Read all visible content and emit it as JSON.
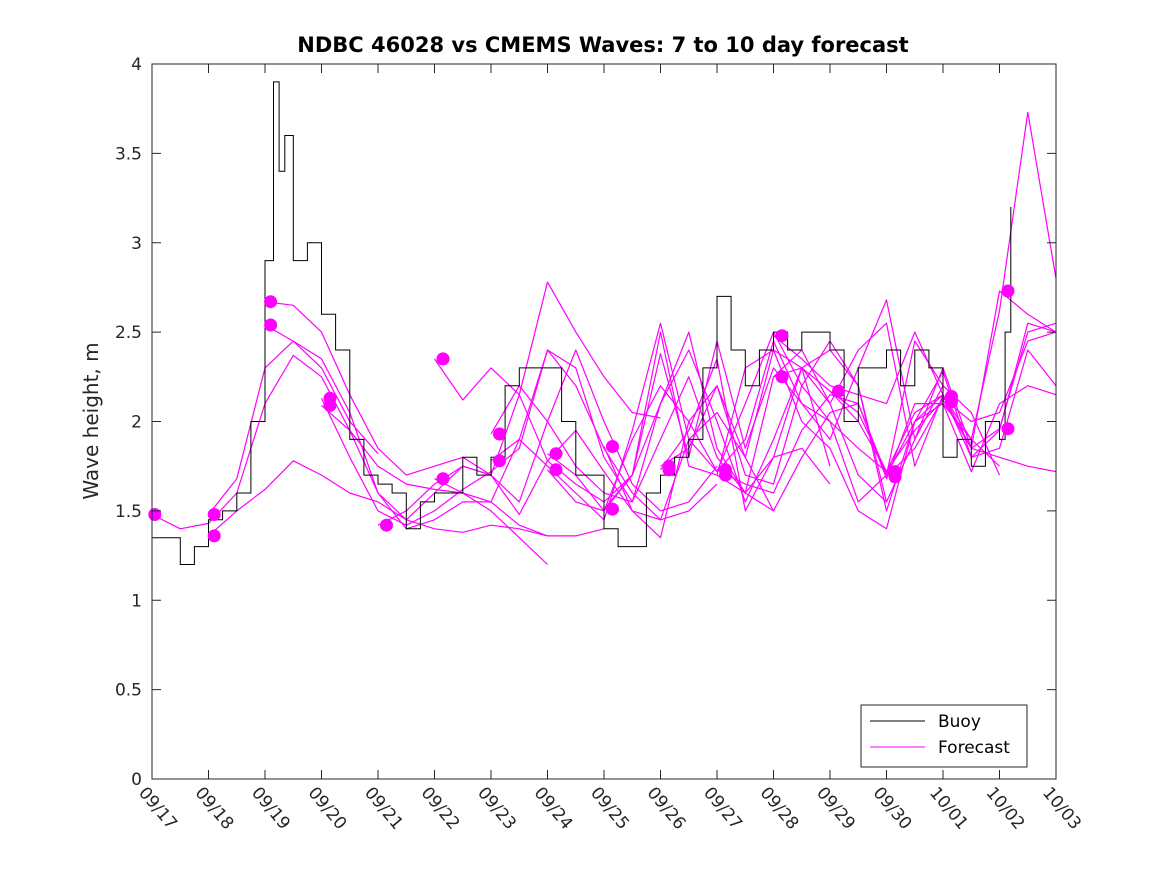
{
  "chart_data": {
    "type": "line",
    "title": "NDBC 46028 vs CMEMS Waves: 7 to 10 day forecast",
    "xlabel": "",
    "ylabel": "Wave height, m",
    "xlim": [
      0,
      16
    ],
    "ylim": [
      0,
      4
    ],
    "yticks": [
      "0",
      "0.5",
      "1",
      "1.5",
      "2",
      "2.5",
      "3",
      "3.5",
      "4"
    ],
    "xticks": [
      "09/17",
      "09/18",
      "09/19",
      "09/20",
      "09/21",
      "09/22",
      "09/23",
      "09/24",
      "09/25",
      "09/26",
      "09/27",
      "09/28",
      "09/29",
      "09/30",
      "10/01",
      "10/02",
      "10/03"
    ],
    "legend": {
      "position": "bottom-right",
      "entries": [
        "Buoy",
        "Forecast"
      ]
    },
    "colors": {
      "buoy": "#000000",
      "forecast": "#ff00ff"
    },
    "buoy": {
      "name": "Buoy",
      "x": [
        0,
        0.25,
        0.5,
        0.75,
        1,
        1.25,
        1.5,
        1.75,
        2,
        2.15,
        2.25,
        2.35,
        2.5,
        2.75,
        3,
        3.25,
        3.5,
        3.75,
        4,
        4.25,
        4.5,
        4.75,
        5,
        5.25,
        5.5,
        5.75,
        6,
        6.25,
        6.5,
        6.75,
        7,
        7.25,
        7.5,
        7.75,
        8,
        8.25,
        8.5,
        8.75,
        9,
        9.25,
        9.5,
        9.75,
        10,
        10.25,
        10.5,
        10.75,
        11,
        11.25,
        11.5,
        11.75,
        12,
        12.25,
        12.5,
        12.75,
        13,
        13.25,
        13.5,
        13.75,
        14,
        14.25,
        14.5,
        14.75,
        15,
        15.1,
        15.2
      ],
      "y": [
        1.35,
        1.35,
        1.2,
        1.3,
        1.45,
        1.5,
        1.6,
        2.0,
        2.9,
        3.9,
        3.4,
        3.6,
        2.9,
        3.0,
        2.6,
        2.4,
        1.9,
        1.7,
        1.65,
        1.6,
        1.4,
        1.55,
        1.6,
        1.6,
        1.8,
        1.7,
        1.8,
        2.2,
        2.3,
        2.3,
        2.3,
        2.0,
        1.7,
        1.7,
        1.4,
        1.3,
        1.3,
        1.6,
        1.7,
        1.8,
        1.9,
        2.3,
        2.7,
        2.4,
        2.2,
        2.4,
        2.5,
        2.4,
        2.5,
        2.5,
        2.4,
        2.0,
        2.3,
        2.3,
        2.4,
        2.2,
        2.4,
        2.3,
        1.8,
        1.9,
        1.75,
        2.0,
        1.9,
        2.5,
        3.2
      ]
    },
    "series": [
      {
        "name": "Forecast",
        "x": [
          0,
          0.5,
          1,
          1.5,
          2,
          2.5,
          3,
          3.5,
          4,
          4.5,
          5,
          5.5,
          6,
          6.5,
          7
        ],
        "y": [
          1.48,
          1.4,
          1.43,
          1.6,
          2.1,
          2.37,
          2.25,
          1.95,
          1.75,
          1.65,
          1.62,
          1.6,
          1.5,
          1.35,
          1.2
        ]
      },
      {
        "name": "Forecast",
        "x": [
          1,
          1.5,
          2,
          2.5,
          3,
          3.5,
          4,
          4.5,
          5,
          5.5,
          6,
          6.5,
          7
        ],
        "y": [
          1.48,
          1.68,
          2.3,
          2.45,
          2.35,
          2.05,
          1.6,
          1.4,
          1.45,
          1.55,
          1.55,
          1.42,
          1.36
        ]
      },
      {
        "name": "Forecast",
        "x": [
          1,
          1.5,
          2,
          2.5,
          3,
          3.5,
          4,
          4.5,
          5,
          5.5,
          6,
          6.5,
          7,
          7.5,
          8
        ],
        "y": [
          1.36,
          1.5,
          1.62,
          1.78,
          1.7,
          1.6,
          1.55,
          1.45,
          1.4,
          1.38,
          1.42,
          1.4,
          1.36,
          1.36,
          1.4
        ]
      },
      {
        "name": "Forecast",
        "x": [
          2,
          2.5,
          3,
          3.5,
          4,
          4.5,
          5,
          5.5,
          6,
          6.5,
          7,
          7.5,
          8,
          8.5,
          9
        ],
        "y": [
          2.67,
          2.65,
          2.5,
          2.15,
          1.85,
          1.7,
          1.75,
          1.8,
          1.7,
          2.15,
          2.78,
          2.5,
          2.25,
          2.05,
          2.02
        ]
      },
      {
        "name": "Forecast",
        "x": [
          2,
          2.5,
          3,
          3.5,
          4
        ],
        "y": [
          2.54,
          2.45,
          2.3,
          2.0,
          1.82
        ]
      },
      {
        "name": "Forecast",
        "x": [
          3,
          3.5,
          4,
          4.5,
          5,
          5.5,
          6,
          6.5,
          7,
          7.5,
          8,
          8.5,
          9,
          9.5,
          10
        ],
        "y": [
          2.13,
          1.8,
          1.5,
          1.42,
          1.5,
          1.62,
          1.72,
          1.85,
          2.4,
          2.2,
          1.85,
          1.6,
          1.45,
          1.5,
          1.65
        ]
      },
      {
        "name": "Forecast",
        "x": [
          3,
          3.5,
          4,
          4.5,
          5,
          5.5,
          6,
          6.5,
          7,
          7.5,
          8,
          8.5,
          9,
          9.5,
          10
        ],
        "y": [
          2.09,
          1.95,
          1.6,
          1.45,
          1.6,
          1.75,
          1.7,
          1.55,
          2.0,
          2.4,
          2.0,
          1.65,
          1.5,
          1.55,
          1.75
        ]
      },
      {
        "name": "Forecast",
        "x": [
          4,
          4.5,
          5,
          5.5,
          6,
          6.5,
          7,
          7.5,
          8,
          8.5,
          9,
          9.5,
          10,
          10.5,
          11
        ],
        "y": [
          1.42,
          1.5,
          1.65,
          1.75,
          1.7,
          1.48,
          1.78,
          1.95,
          1.72,
          1.5,
          1.45,
          1.9,
          2.05,
          1.8,
          1.5
        ]
      },
      {
        "name": "Forecast",
        "x": [
          5,
          5.5,
          6,
          6.5,
          7,
          7.5,
          8,
          8.5,
          9,
          9.5,
          10,
          10.5,
          11,
          11.5,
          12
        ],
        "y": [
          2.35,
          2.12,
          2.3,
          2.15,
          1.78,
          1.65,
          1.55,
          1.7,
          2.1,
          2.5,
          1.85,
          1.6,
          1.8,
          1.85,
          1.65
        ]
      },
      {
        "name": "Forecast",
        "x": [
          5,
          5.5,
          6,
          6.5,
          7,
          7.5,
          8,
          8.5,
          9,
          9.5,
          10,
          10.5,
          11,
          11.5,
          12
        ],
        "y": [
          1.68,
          1.6,
          1.55,
          1.9,
          2.4,
          2.3,
          1.8,
          1.55,
          2.1,
          2.4,
          2.0,
          1.55,
          1.9,
          2.3,
          1.75
        ]
      },
      {
        "name": "Forecast",
        "x": [
          6,
          6.5,
          7,
          7.5,
          8,
          8.5,
          9,
          9.5,
          10,
          10.5,
          11,
          11.5,
          12,
          12.5,
          13
        ],
        "y": [
          1.93,
          2.2,
          2.0,
          1.75,
          1.6,
          1.55,
          1.9,
          2.25,
          1.8,
          1.6,
          2.25,
          2.4,
          2.1,
          1.7,
          1.55
        ]
      },
      {
        "name": "Forecast",
        "x": [
          6,
          6.5,
          7,
          7.5,
          8,
          8.5,
          9,
          9.5,
          10,
          10.5,
          11,
          11.5,
          12,
          12.5,
          13
        ],
        "y": [
          1.78,
          1.9,
          1.75,
          1.6,
          1.45,
          1.95,
          2.55,
          1.9,
          1.72,
          1.9,
          2.45,
          2.1,
          2.0,
          1.85,
          1.72
        ]
      },
      {
        "name": "Forecast",
        "x": [
          7,
          7.5,
          8,
          8.5,
          9,
          9.5,
          10,
          10.5,
          11,
          11.5,
          12,
          12.5,
          13,
          13.5,
          14
        ],
        "y": [
          1.82,
          1.7,
          1.5,
          1.7,
          2.5,
          1.75,
          1.7,
          2.3,
          2.4,
          2.0,
          1.85,
          1.5,
          1.4,
          2.0,
          2.15
        ]
      },
      {
        "name": "Forecast",
        "x": [
          7,
          7.5,
          8,
          8.5,
          9,
          9.5,
          10,
          10.5,
          11,
          11.5,
          12,
          12.5,
          13,
          13.5,
          14
        ],
        "y": [
          1.73,
          1.55,
          1.5,
          1.9,
          2.2,
          2.0,
          1.72,
          2.1,
          2.5,
          2.2,
          2.0,
          1.55,
          1.7,
          2.45,
          2.2
        ]
      },
      {
        "name": "Forecast",
        "x": [
          8,
          8.5,
          9,
          9.5,
          10,
          10.5,
          11,
          11.5,
          12,
          12.5,
          13,
          13.5,
          14,
          14.5,
          15
        ],
        "y": [
          1.86,
          1.5,
          1.35,
          2.0,
          2.2,
          1.8,
          2.4,
          2.3,
          2.1,
          2.4,
          2.55,
          1.75,
          2.15,
          1.9,
          1.75
        ]
      },
      {
        "name": "Forecast",
        "x": [
          8,
          8.5,
          9,
          9.5,
          10,
          10.5,
          11,
          11.5,
          12,
          12.5,
          13,
          13.5,
          14,
          14.5,
          15
        ],
        "y": [
          1.51,
          1.7,
          2.38,
          1.8,
          2.45,
          1.85,
          2.3,
          2.1,
          1.9,
          2.3,
          2.68,
          1.9,
          2.2,
          2.05,
          1.7
        ]
      },
      {
        "name": "Forecast",
        "x": [
          9,
          9.5,
          10,
          10.5,
          11,
          11.5,
          12,
          12.5,
          13,
          13.5,
          14,
          14.5,
          15,
          15.5,
          16
        ],
        "y": [
          1.75,
          1.85,
          2.2,
          1.7,
          1.65,
          2.2,
          2.45,
          2.2,
          1.5,
          2.0,
          2.1,
          1.9,
          2.62,
          3.73,
          2.8
        ]
      },
      {
        "name": "Forecast",
        "x": [
          9,
          9.5,
          10,
          10.5,
          11,
          11.5,
          12,
          12.5,
          13,
          13.5,
          14,
          14.5,
          15,
          15.5,
          16
        ],
        "y": [
          1.73,
          1.95,
          2.35,
          1.5,
          1.8,
          2.3,
          2.4,
          2.2,
          1.55,
          1.9,
          2.3,
          1.85,
          1.8,
          1.75,
          1.72
        ]
      },
      {
        "name": "Forecast",
        "x": [
          10,
          10.5,
          11,
          11.5,
          12,
          12.5,
          13,
          13.5,
          14,
          14.5,
          15,
          15.5,
          16
        ],
        "y": [
          1.73,
          1.65,
          1.6,
          1.95,
          2.15,
          2.1,
          1.7,
          2.0,
          2.28,
          1.8,
          1.95,
          2.55,
          2.5
        ]
      },
      {
        "name": "Forecast",
        "x": [
          10,
          10.5,
          11,
          11.5,
          12,
          12.5,
          13,
          13.5,
          14,
          14.5,
          15,
          15.5,
          16
        ],
        "y": [
          1.7,
          1.6,
          1.5,
          1.8,
          2.05,
          2.1,
          1.68,
          2.1,
          2.1,
          1.72,
          2.1,
          2.2,
          2.15
        ]
      },
      {
        "name": "Forecast",
        "x": [
          11,
          11.5,
          12,
          12.5,
          13,
          13.5,
          14,
          14.5,
          15,
          15.5,
          16
        ],
        "y": [
          2.48,
          2.35,
          2.2,
          2.15,
          2.1,
          2.5,
          2.15,
          1.8,
          1.85,
          2.4,
          2.2
        ]
      },
      {
        "name": "Forecast",
        "x": [
          11,
          11.5,
          12,
          12.5,
          13,
          13.5,
          14,
          14.5,
          15,
          15.5,
          16
        ],
        "y": [
          2.25,
          2.3,
          2.17,
          2.05,
          1.72,
          1.95,
          2.12,
          1.85,
          2.73,
          2.6,
          2.5
        ]
      },
      {
        "name": "Forecast",
        "x": [
          12,
          12.5,
          13,
          13.5,
          14,
          14.5,
          15,
          15.5,
          16
        ],
        "y": [
          2.17,
          2.0,
          1.72,
          2.05,
          2.15,
          1.85,
          1.96,
          2.5,
          2.55
        ]
      },
      {
        "name": "Forecast",
        "x": [
          13,
          13.5,
          14,
          14.5,
          15,
          15.5,
          16
        ],
        "y": [
          1.69,
          1.85,
          2.13,
          2.0,
          2.05,
          2.45,
          2.5
        ]
      }
    ],
    "markers": {
      "name": "Forecast start",
      "x": [
        0.05,
        1.1,
        1.1,
        2.1,
        2.1,
        3.15,
        3.15,
        4.15,
        5.15,
        5.15,
        6.15,
        6.15,
        7.15,
        7.15,
        8.15,
        8.15,
        9.15,
        9.15,
        10.15,
        10.15,
        11.15,
        11.15,
        12.15,
        13.15,
        13.15,
        14.15,
        14.15,
        15.15,
        15.15
      ],
      "y": [
        1.48,
        1.48,
        1.36,
        2.67,
        2.54,
        2.13,
        2.09,
        1.42,
        2.35,
        1.68,
        1.93,
        1.78,
        1.82,
        1.73,
        1.86,
        1.51,
        1.75,
        1.73,
        1.73,
        1.7,
        2.48,
        2.25,
        2.17,
        1.72,
        1.69,
        2.14,
        2.11,
        2.73,
        1.96
      ]
    }
  }
}
